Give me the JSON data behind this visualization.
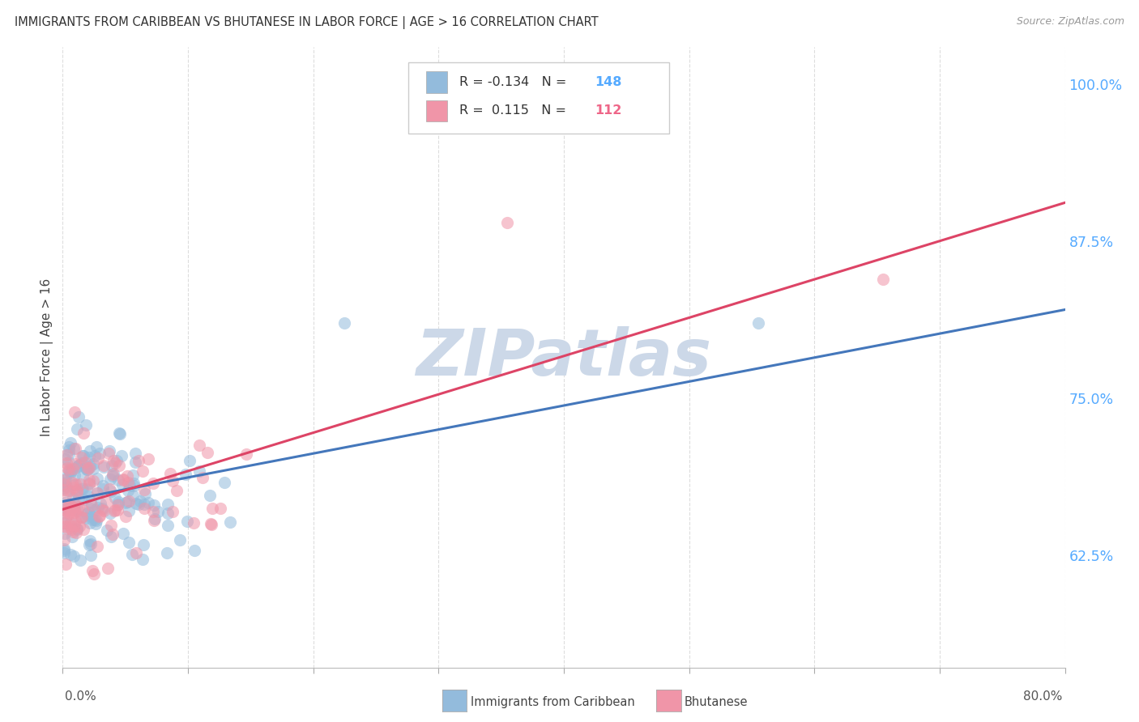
{
  "title": "IMMIGRANTS FROM CARIBBEAN VS BHUTANESE IN LABOR FORCE | AGE > 16 CORRELATION CHART",
  "source": "Source: ZipAtlas.com",
  "ylabel": "In Labor Force | Age > 16",
  "right_yticks": [
    0.625,
    0.75,
    0.875,
    1.0
  ],
  "right_yticklabels": [
    "62.5%",
    "75.0%",
    "87.5%",
    "100.0%"
  ],
  "xmin": 0.0,
  "xmax": 0.8,
  "ymin": 0.535,
  "ymax": 1.03,
  "r_carib": -0.134,
  "n_carib": 148,
  "r_bhut": 0.115,
  "n_bhut": 112,
  "color_caribbean": "#93bbdc",
  "color_bhutanese": "#f095a8",
  "color_caribbean_line": "#4477bb",
  "color_bhutanese_line": "#dd4466",
  "color_title": "#333333",
  "color_source": "#999999",
  "color_right_axis": "#55aaff",
  "color_n_carib": "#55aaff",
  "color_n_bhut": "#ee6688",
  "watermark_color": "#ccd8e8",
  "background_color": "#ffffff",
  "grid_color": "#dddddd"
}
